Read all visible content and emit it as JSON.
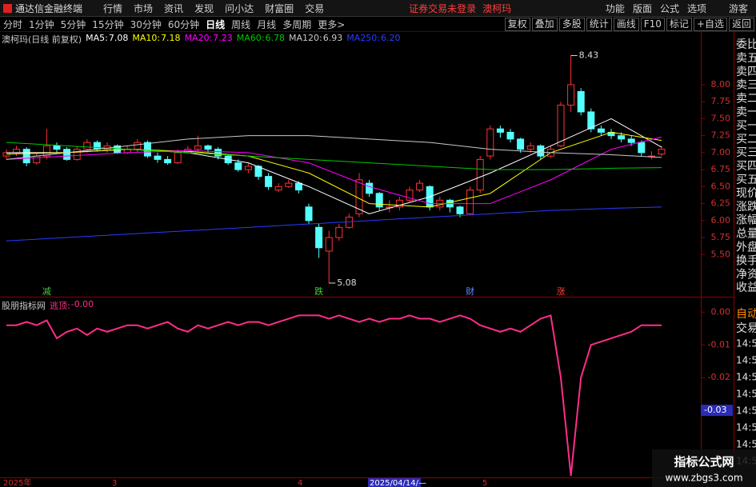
{
  "app_title": "通达信金融终端",
  "menu": [
    "行情",
    "市场",
    "资讯",
    "发现",
    "问小达",
    "财富圈",
    "交易"
  ],
  "login_status": "证券交易未登录",
  "stock": "澳柯玛",
  "right_menu": [
    "功能",
    "版面",
    "公式",
    "选项"
  ],
  "user": "游客",
  "periods": [
    "分时",
    "1分钟",
    "5分钟",
    "15分钟",
    "30分钟",
    "60分钟",
    "日线",
    "周线",
    "月线",
    "多周期",
    "更多>"
  ],
  "active_period_index": 6,
  "buttons": [
    "复权",
    "叠加",
    "多股",
    "统计",
    "画线",
    "F10",
    "标记",
    "+自选",
    "返回"
  ],
  "sidebar": {
    "quote_labels": [
      "委比",
      "卖五",
      "卖四",
      "卖三",
      "卖二",
      "卖一",
      "买一",
      "买二",
      "买三",
      "买四",
      "买五",
      "现价",
      "涨跌",
      "涨幅",
      "总量",
      "外盘",
      "换手",
      "净资",
      "收益"
    ],
    "trade": [
      "自动",
      "交易"
    ],
    "times": [
      "14:56",
      "14:56",
      "14:56",
      "14:56",
      "14:56",
      "14:56",
      "14:56",
      "14:56"
    ]
  },
  "time_axis": [
    "2025年",
    "3",
    "4",
    "2025/04/14/—",
    "5"
  ],
  "watermark": [
    "指标公式网",
    "www.zbgs3.com"
  ],
  "chart_data": [
    {
      "type": "candlestick",
      "title": "澳柯玛(日线 前复权)",
      "up_color": "#ff3232",
      "down_color": "#54ffff",
      "ohlc": [
        [
          6.95,
          7.05,
          6.9,
          7.0
        ],
        [
          7.0,
          7.1,
          6.95,
          7.05
        ],
        [
          7.05,
          7.08,
          6.8,
          6.85
        ],
        [
          6.85,
          7.0,
          6.82,
          6.95
        ],
        [
          6.95,
          7.35,
          6.9,
          7.1
        ],
        [
          7.1,
          7.15,
          7.0,
          7.05
        ],
        [
          7.05,
          7.08,
          6.88,
          6.9
        ],
        [
          6.9,
          7.1,
          6.88,
          7.05
        ],
        [
          7.05,
          7.2,
          7.0,
          7.15
        ],
        [
          7.15,
          7.18,
          7.02,
          7.05
        ],
        [
          7.05,
          7.15,
          7.0,
          7.1
        ],
        [
          7.1,
          7.12,
          6.98,
          7.0
        ],
        [
          7.0,
          7.1,
          6.98,
          7.05
        ],
        [
          7.05,
          7.2,
          7.0,
          7.15
        ],
        [
          7.15,
          7.18,
          6.92,
          6.95
        ],
        [
          6.95,
          7.0,
          6.85,
          6.9
        ],
        [
          6.9,
          6.95,
          6.82,
          6.85
        ],
        [
          6.85,
          7.05,
          6.83,
          7.0
        ],
        [
          7.0,
          7.1,
          6.98,
          7.05
        ],
        [
          7.05,
          7.25,
          7.02,
          7.1
        ],
        [
          7.1,
          7.12,
          7.0,
          7.05
        ],
        [
          7.05,
          7.08,
          6.9,
          6.95
        ],
        [
          6.95,
          6.98,
          6.82,
          6.85
        ],
        [
          6.85,
          6.9,
          6.72,
          6.75
        ],
        [
          6.75,
          6.85,
          6.7,
          6.8
        ],
        [
          6.8,
          6.82,
          6.6,
          6.65
        ],
        [
          6.65,
          6.7,
          6.45,
          6.5
        ],
        [
          6.45,
          6.55,
          6.42,
          6.5
        ],
        [
          6.5,
          6.6,
          6.48,
          6.55
        ],
        [
          6.55,
          6.58,
          6.4,
          6.45
        ],
        [
          6.2,
          6.25,
          5.95,
          6.0
        ],
        [
          5.9,
          5.95,
          5.45,
          5.6
        ],
        [
          5.55,
          5.85,
          5.08,
          5.75
        ],
        [
          5.75,
          5.95,
          5.7,
          5.9
        ],
        [
          5.9,
          6.1,
          5.88,
          6.05
        ],
        [
          6.1,
          6.7,
          6.05,
          6.6
        ],
        [
          6.55,
          6.6,
          6.35,
          6.4
        ],
        [
          6.4,
          6.42,
          6.15,
          6.2
        ],
        [
          6.2,
          6.3,
          6.12,
          6.2
        ],
        [
          6.2,
          6.35,
          6.15,
          6.3
        ],
        [
          6.3,
          6.5,
          6.28,
          6.45
        ],
        [
          6.45,
          6.6,
          6.42,
          6.55
        ],
        [
          6.5,
          6.52,
          6.15,
          6.2
        ],
        [
          6.2,
          6.35,
          6.15,
          6.3
        ],
        [
          6.3,
          6.32,
          6.12,
          6.2
        ],
        [
          6.2,
          6.22,
          6.05,
          6.1
        ],
        [
          6.1,
          6.5,
          6.08,
          6.45
        ],
        [
          6.45,
          6.95,
          6.4,
          6.9
        ],
        [
          6.95,
          7.4,
          6.9,
          7.35
        ],
        [
          7.35,
          7.4,
          7.22,
          7.3
        ],
        [
          7.3,
          7.35,
          7.15,
          7.2
        ],
        [
          7.2,
          7.22,
          7.0,
          7.05
        ],
        [
          7.05,
          7.15,
          7.0,
          7.1
        ],
        [
          7.1,
          7.12,
          6.9,
          6.95
        ],
        [
          6.95,
          7.1,
          6.92,
          7.05
        ],
        [
          7.1,
          7.75,
          7.08,
          7.7
        ],
        [
          7.7,
          8.43,
          7.6,
          8.0
        ],
        [
          7.9,
          7.95,
          7.55,
          7.6
        ],
        [
          7.6,
          7.65,
          7.3,
          7.35
        ],
        [
          7.35,
          7.4,
          7.25,
          7.3
        ],
        [
          7.3,
          7.35,
          7.2,
          7.25
        ],
        [
          7.25,
          7.3,
          7.15,
          7.2
        ],
        [
          7.2,
          7.25,
          7.1,
          7.15
        ],
        [
          7.15,
          7.18,
          6.95,
          7.0
        ],
        [
          6.95,
          7.02,
          6.9,
          6.95
        ],
        [
          6.98,
          7.1,
          6.95,
          7.05
        ]
      ],
      "ma_x": [
        0,
        6,
        12,
        18,
        24,
        30,
        36,
        42,
        48,
        54,
        60,
        65
      ],
      "series": [
        {
          "name": "MA5",
          "current": 7.08,
          "color": "#ffffff",
          "values": [
            7.0,
            7.0,
            7.05,
            7.0,
            6.85,
            6.5,
            6.1,
            6.35,
            6.7,
            7.1,
            7.5,
            7.08
          ]
        },
        {
          "name": "MA10",
          "current": 7.18,
          "color": "#ffff00",
          "values": [
            6.98,
            7.0,
            7.05,
            7.02,
            6.95,
            6.7,
            6.25,
            6.2,
            6.4,
            7.0,
            7.3,
            7.18
          ]
        },
        {
          "name": "MA20",
          "current": 7.23,
          "color": "#ff00ff",
          "values": [
            6.9,
            6.95,
            7.0,
            7.03,
            7.0,
            6.85,
            6.5,
            6.25,
            6.25,
            6.6,
            7.05,
            7.23
          ]
        },
        {
          "name": "MA60",
          "current": 6.78,
          "color": "#00c800",
          "values": [
            7.15,
            7.1,
            7.05,
            7.0,
            6.95,
            6.9,
            6.85,
            6.8,
            6.75,
            6.75,
            6.77,
            6.78
          ]
        },
        {
          "name": "MA120",
          "current": 6.93,
          "color": "#c8c8c8",
          "values": [
            6.9,
            7.0,
            7.1,
            7.2,
            7.25,
            7.25,
            7.2,
            7.15,
            7.05,
            7.0,
            6.97,
            6.93
          ]
        },
        {
          "name": "MA250",
          "current": {
            "value": 6.2,
            "label": "6.20"
          },
          "color": "#2a3cff",
          "values": [
            5.7,
            5.75,
            5.8,
            5.85,
            5.9,
            5.95,
            6.0,
            6.05,
            6.1,
            6.15,
            6.18,
            6.2
          ]
        }
      ],
      "annotations": [
        {
          "value": 8.43,
          "index": 56
        },
        {
          "value": 5.08,
          "index": 32
        }
      ],
      "events": [
        {
          "text": "减",
          "index": 4,
          "color": "#3cd23c"
        },
        {
          "text": "跌",
          "index": 31,
          "color": "#3cd23c"
        },
        {
          "text": "财",
          "index": 46,
          "color": "#5b8cff"
        },
        {
          "text": "涨",
          "index": 55,
          "color": "#ff4040"
        }
      ],
      "ylim": [
        4.95,
        8.6
      ],
      "yticks": [
        {
          "value": 8.0,
          "label": "8.00"
        },
        7.75,
        {
          "value": 7.5,
          "label": "7.50"
        },
        7.25,
        {
          "value": 7.0,
          "label": "7.00"
        },
        6.75,
        {
          "value": 6.5,
          "label": "6.50"
        },
        6.25,
        {
          "value": 6.0,
          "label": "6.00"
        },
        5.75,
        {
          "value": 5.5,
          "label": "5.50"
        }
      ]
    },
    {
      "type": "line",
      "title": "股朋指标网",
      "series": [
        {
          "name": "逃顶",
          "color": "#ff2d8a",
          "current": {
            "value": -0.004,
            "label": "-0.00"
          },
          "values": [
            -0.004,
            -0.004,
            -0.003,
            -0.004,
            -0.0025,
            -0.008,
            -0.006,
            -0.005,
            -0.007,
            -0.005,
            -0.006,
            -0.005,
            -0.004,
            -0.004,
            -0.005,
            -0.004,
            -0.003,
            -0.005,
            -0.006,
            -0.004,
            -0.005,
            -0.004,
            -0.003,
            -0.004,
            -0.003,
            -0.003,
            -0.004,
            -0.003,
            -0.002,
            -0.001,
            -0.001,
            -0.001,
            -0.002,
            -0.001,
            -0.002,
            -0.003,
            -0.002,
            -0.003,
            -0.002,
            -0.002,
            -0.001,
            -0.002,
            -0.002,
            -0.003,
            -0.002,
            -0.001,
            -0.002,
            -0.004,
            -0.005,
            -0.006,
            -0.005,
            -0.006,
            -0.004,
            -0.002,
            -0.001,
            -0.02,
            -0.05,
            -0.02,
            -0.01,
            -0.009,
            -0.008,
            -0.007,
            -0.006,
            -0.004,
            -0.004,
            -0.004
          ]
        }
      ],
      "ylim": [
        -0.05,
        0.0035
      ],
      "yticks": [
        {
          "value": 0,
          "label": "0.00"
        },
        {
          "value": -0.01,
          "label": "-0.01"
        },
        {
          "value": -0.02,
          "label": "-0.02"
        }
      ],
      "cursor_label": {
        "value": -0.03,
        "label": "-0.03"
      }
    }
  ]
}
